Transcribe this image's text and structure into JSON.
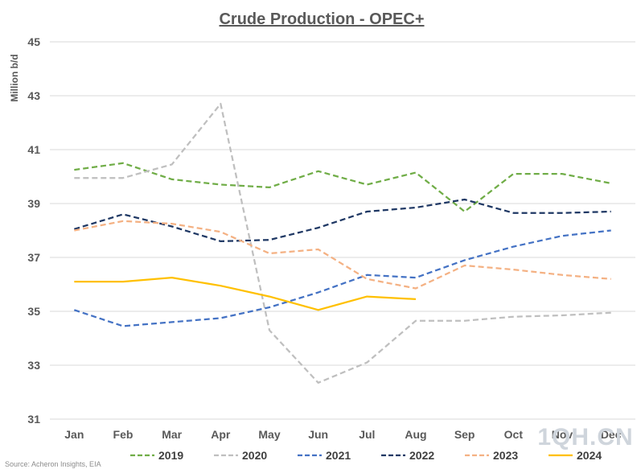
{
  "chart_data": {
    "type": "line",
    "title": "Crude Production - OPEC+",
    "xlabel": "",
    "ylabel": "Million b/d",
    "categories": [
      "Jan",
      "Feb",
      "Mar",
      "Apr",
      "May",
      "Jun",
      "Jul",
      "Aug",
      "Sep",
      "Oct",
      "Nov",
      "Dec"
    ],
    "ylim": [
      31,
      45
    ],
    "yticks": [
      31,
      33,
      35,
      37,
      39,
      41,
      43,
      45
    ],
    "grid": "horizontal",
    "legend_position": "bottom",
    "series": [
      {
        "name": "2019",
        "color": "#70ad47",
        "dash": true,
        "values": [
          40.25,
          40.5,
          39.9,
          39.7,
          39.6,
          40.2,
          39.7,
          40.15,
          38.7,
          40.1,
          40.1,
          39.75
        ]
      },
      {
        "name": "2020",
        "color": "#bfbfbf",
        "dash": true,
        "values": [
          39.95,
          39.95,
          40.45,
          42.7,
          34.3,
          32.35,
          33.1,
          34.65,
          34.65,
          34.8,
          34.85,
          34.95
        ]
      },
      {
        "name": "2021",
        "color": "#4472c4",
        "dash": true,
        "values": [
          35.05,
          34.45,
          34.6,
          34.75,
          35.15,
          35.7,
          36.35,
          36.25,
          36.9,
          37.4,
          37.8,
          38.0
        ]
      },
      {
        "name": "2022",
        "color": "#1f3864",
        "dash": true,
        "values": [
          38.05,
          38.6,
          38.15,
          37.6,
          37.65,
          38.1,
          38.7,
          38.85,
          39.15,
          38.65,
          38.65,
          38.7
        ]
      },
      {
        "name": "2023",
        "color": "#f4b183",
        "dash": true,
        "values": [
          38.0,
          38.35,
          38.25,
          37.95,
          37.15,
          37.3,
          36.2,
          35.85,
          36.7,
          36.55,
          36.35,
          36.2
        ]
      },
      {
        "name": "2024",
        "color": "#ffc000",
        "dash": false,
        "values": [
          36.1,
          36.1,
          36.25,
          35.95,
          35.55,
          35.05,
          35.55,
          35.45,
          null,
          null,
          null,
          null
        ]
      }
    ]
  },
  "source": "Source: Acheron Insights, EIA",
  "watermark": "1QH.CN"
}
